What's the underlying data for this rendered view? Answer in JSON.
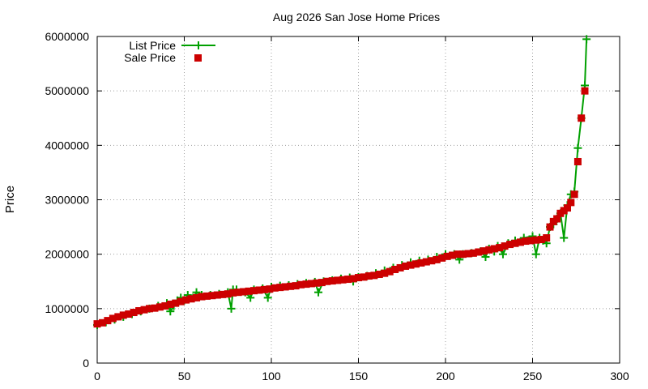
{
  "chart_data": {
    "type": "line",
    "title": "Aug 2026 San Jose Home Prices",
    "xlabel": "",
    "ylabel": "Price",
    "xlim": [
      0,
      300
    ],
    "ylim": [
      0,
      6000000
    ],
    "xticks": [
      "0",
      "50",
      "100",
      "150",
      "200",
      "250",
      "300"
    ],
    "yticks": [
      "0",
      "1000000",
      "2000000",
      "3000000",
      "4000000",
      "5000000",
      "6000000"
    ],
    "grid": true,
    "legend_position": "top-left",
    "series": [
      {
        "name": "List Price",
        "style": "line-with-plus-markers",
        "color": "#00a000",
        "x": [
          0,
          5,
          10,
          15,
          20,
          25,
          30,
          35,
          40,
          42,
          44,
          46,
          48,
          50,
          52,
          55,
          57,
          60,
          65,
          70,
          75,
          77,
          78,
          80,
          85,
          88,
          90,
          95,
          98,
          100,
          105,
          110,
          115,
          120,
          125,
          127,
          130,
          135,
          140,
          145,
          147,
          150,
          155,
          160,
          165,
          170,
          175,
          180,
          185,
          190,
          195,
          200,
          205,
          208,
          210,
          215,
          220,
          223,
          225,
          228,
          230,
          233,
          236,
          240,
          245,
          250,
          252,
          254,
          256,
          258,
          260,
          262,
          264,
          266,
          268,
          270,
          272,
          274,
          276,
          278,
          280,
          281
        ],
        "values": [
          700000,
          750000,
          800000,
          850000,
          900000,
          950000,
          1000000,
          1050000,
          1100000,
          950000,
          1050000,
          1150000,
          1200000,
          1150000,
          1250000,
          1200000,
          1300000,
          1250000,
          1250000,
          1270000,
          1300000,
          1000000,
          1350000,
          1350000,
          1300000,
          1200000,
          1350000,
          1370000,
          1200000,
          1400000,
          1420000,
          1430000,
          1450000,
          1470000,
          1490000,
          1300000,
          1500000,
          1520000,
          1550000,
          1570000,
          1500000,
          1580000,
          1600000,
          1650000,
          1700000,
          1750000,
          1800000,
          1850000,
          1880000,
          1900000,
          1950000,
          2000000,
          2000000,
          1900000,
          2000000,
          2020000,
          2050000,
          1950000,
          2100000,
          2050000,
          2150000,
          2000000,
          2200000,
          2250000,
          2300000,
          2330000,
          2000000,
          2300000,
          2250000,
          2200000,
          2500000,
          2550000,
          2650000,
          2750000,
          2300000,
          2900000,
          3100000,
          3150000,
          3950000,
          4500000,
          5100000,
          5950000
        ]
      },
      {
        "name": "Sale Price",
        "style": "square-markers",
        "color": "#cc0000",
        "x": [
          0,
          3,
          6,
          9,
          12,
          15,
          18,
          21,
          24,
          27,
          30,
          33,
          36,
          39,
          42,
          45,
          48,
          51,
          54,
          57,
          60,
          63,
          66,
          69,
          72,
          75,
          78,
          81,
          84,
          87,
          90,
          93,
          96,
          99,
          102,
          105,
          108,
          111,
          114,
          117,
          120,
          123,
          126,
          129,
          132,
          135,
          138,
          141,
          144,
          147,
          150,
          153,
          156,
          159,
          162,
          165,
          168,
          171,
          174,
          177,
          180,
          183,
          186,
          189,
          192,
          195,
          198,
          201,
          204,
          207,
          210,
          213,
          216,
          219,
          222,
          225,
          228,
          231,
          234,
          237,
          240,
          243,
          246,
          249,
          252,
          255,
          258,
          260,
          262,
          264,
          266,
          268,
          270,
          272,
          274,
          276,
          278,
          280
        ],
        "values": [
          720000,
          740000,
          780000,
          820000,
          850000,
          880000,
          900000,
          930000,
          960000,
          980000,
          1000000,
          1010000,
          1030000,
          1050000,
          1080000,
          1100000,
          1130000,
          1160000,
          1180000,
          1200000,
          1220000,
          1230000,
          1240000,
          1250000,
          1260000,
          1270000,
          1290000,
          1300000,
          1310000,
          1320000,
          1330000,
          1340000,
          1350000,
          1360000,
          1380000,
          1390000,
          1400000,
          1410000,
          1420000,
          1440000,
          1450000,
          1460000,
          1470000,
          1480000,
          1500000,
          1510000,
          1520000,
          1530000,
          1540000,
          1550000,
          1570000,
          1580000,
          1600000,
          1610000,
          1630000,
          1650000,
          1680000,
          1720000,
          1750000,
          1780000,
          1800000,
          1820000,
          1840000,
          1860000,
          1880000,
          1900000,
          1930000,
          1960000,
          1980000,
          2000000,
          2000000,
          2010000,
          2020000,
          2040000,
          2060000,
          2080000,
          2100000,
          2120000,
          2150000,
          2180000,
          2200000,
          2220000,
          2240000,
          2250000,
          2260000,
          2270000,
          2300000,
          2500000,
          2600000,
          2650000,
          2750000,
          2800000,
          2850000,
          2950000,
          3100000,
          3700000,
          4500000,
          5000000
        ]
      }
    ]
  }
}
